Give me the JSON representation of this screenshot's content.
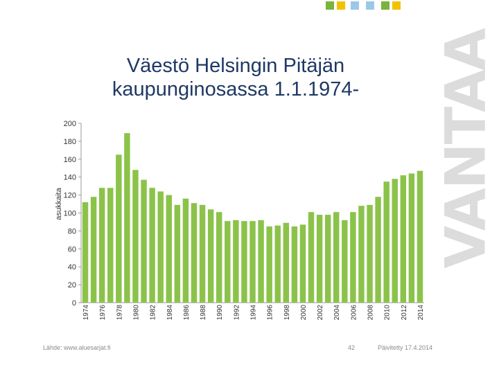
{
  "slide": {
    "title_line1": "Väestö Helsingin Pitäjän",
    "title_line2": "kaupunginosassa 1.1.1974-",
    "source": "Lähde: www.aluesarjat.fi",
    "page_number": "42",
    "updated": "Päivitetty 17.4.2014",
    "brand": "VANTAA",
    "brand_color": "#dcdcdc",
    "logo_colors": [
      "#7ab33d",
      "#f2c200",
      "#9cc8e8"
    ]
  },
  "chart_data": {
    "type": "bar",
    "title": "",
    "xlabel": "",
    "ylabel": "asukkaita",
    "ylim": [
      0,
      200
    ],
    "yticks": [
      0,
      20,
      40,
      60,
      80,
      100,
      120,
      140,
      160,
      180,
      200
    ],
    "grid": false,
    "bar_color": "#8bc34a",
    "categories": [
      "1974",
      "1975",
      "1976",
      "1977",
      "1978",
      "1979",
      "1980",
      "1981",
      "1982",
      "1983",
      "1984",
      "1985",
      "1986",
      "1987",
      "1988",
      "1989",
      "1990",
      "1991",
      "1992",
      "1993",
      "1994",
      "1995",
      "1996",
      "1997",
      "1998",
      "1999",
      "2000",
      "2001",
      "2002",
      "2003",
      "2004",
      "2005",
      "2006",
      "2007",
      "2008",
      "2009",
      "2010",
      "2011",
      "2012",
      "2013",
      "2014"
    ],
    "xtick_labels": [
      "1974",
      "1976",
      "1978",
      "1980",
      "1982",
      "1984",
      "1986",
      "1988",
      "1990",
      "1992",
      "1994",
      "1996",
      "1998",
      "2000",
      "2002",
      "2004",
      "2006",
      "2008",
      "2010",
      "2012",
      "2014"
    ],
    "values": [
      112,
      118,
      128,
      128,
      165,
      189,
      148,
      137,
      128,
      124,
      120,
      109,
      116,
      111,
      109,
      104,
      101,
      91,
      92,
      91,
      91,
      92,
      85,
      86,
      89,
      85,
      87,
      101,
      98,
      98,
      101,
      92,
      101,
      108,
      109,
      118,
      135,
      138,
      142,
      144,
      147
    ]
  }
}
